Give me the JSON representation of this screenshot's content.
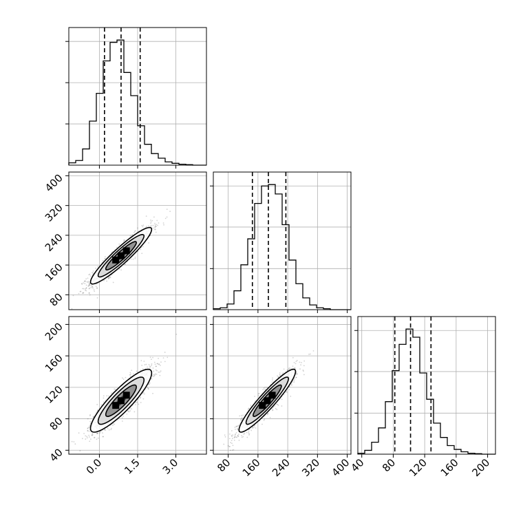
{
  "chart_data": [
    {
      "panel": "hist-p1",
      "type": "histogram",
      "x_ticks": [
        0.0,
        1.5,
        3.0
      ],
      "x_tick_labels": [
        "0.0",
        "1.5",
        "3.0"
      ],
      "xlim": [
        -1.2,
        4.2
      ],
      "bin_start": -1.2,
      "bin_width": 0.27,
      "counts": [
        5,
        10,
        35,
        95,
        155,
        225,
        265,
        270,
        200,
        150,
        85,
        45,
        25,
        15,
        7,
        4,
        2,
        1,
        0,
        0
      ],
      "quantiles": [
        0.2,
        0.85,
        1.6
      ],
      "grid": true
    },
    {
      "panel": "hist-p2",
      "type": "histogram",
      "x_ticks": [
        80,
        160,
        240,
        320,
        400
      ],
      "x_tick_labels": [
        "80",
        "160",
        "240",
        "320",
        "400"
      ],
      "xlim": [
        40,
        410
      ],
      "bin_start": 40,
      "bin_width": 18.5,
      "counts": [
        2,
        4,
        12,
        40,
        95,
        150,
        225,
        262,
        265,
        245,
        180,
        105,
        55,
        25,
        10,
        4,
        2,
        0,
        0,
        0
      ],
      "quantiles": [
        145,
        188,
        235
      ],
      "grid": true
    },
    {
      "panel": "hist-p3",
      "type": "histogram",
      "x_ticks": [
        40,
        80,
        120,
        160,
        200
      ],
      "x_tick_labels": [
        "40",
        "80",
        "120",
        "160",
        "200"
      ],
      "xlim": [
        35,
        210
      ],
      "bin_start": 35,
      "bin_width": 8.75,
      "counts": [
        2,
        8,
        25,
        55,
        110,
        175,
        230,
        262,
        245,
        170,
        115,
        65,
        35,
        18,
        10,
        5,
        2,
        1,
        0,
        0
      ],
      "quantiles": [
        82,
        102,
        128
      ],
      "grid": true
    },
    {
      "panel": "density-p2-vs-p1",
      "type": "scatter-contour",
      "x_ticks": [
        0.0,
        1.5,
        3.0
      ],
      "x_tick_labels": [
        "0.0",
        "1.5",
        "3.0"
      ],
      "y_ticks": [
        80,
        160,
        240,
        320,
        400
      ],
      "y_tick_labels": [
        "80",
        "160",
        "240",
        "320",
        "400"
      ],
      "xlim": [
        -1.2,
        4.2
      ],
      "ylim": [
        40,
        410
      ],
      "mean": [
        0.85,
        185
      ],
      "std": [
        0.6,
        38
      ],
      "correlation": 0.93,
      "contour_levels_sigma": [
        0.5,
        1.0,
        1.5,
        2.0
      ]
    },
    {
      "panel": "density-p3-vs-p1",
      "type": "scatter-contour",
      "x_ticks": [
        0.0,
        1.5,
        3.0
      ],
      "x_tick_labels": [
        "0.0",
        "1.5",
        "3.0"
      ],
      "y_ticks": [
        40,
        80,
        120,
        160,
        200
      ],
      "y_tick_labels": [
        "40",
        "80",
        "120",
        "160",
        "200"
      ],
      "xlim": [
        -1.2,
        4.2
      ],
      "ylim": [
        35,
        210
      ],
      "mean": [
        0.85,
        103
      ],
      "std": [
        0.6,
        20
      ],
      "correlation": 0.88,
      "contour_levels_sigma": [
        0.5,
        1.0,
        1.5,
        2.0
      ]
    },
    {
      "panel": "density-p3-vs-p2",
      "type": "scatter-contour",
      "x_ticks": [
        80,
        160,
        240,
        320,
        400
      ],
      "x_tick_labels": [
        "80",
        "160",
        "240",
        "320",
        "400"
      ],
      "y_ticks": [
        40,
        80,
        120,
        160,
        200
      ],
      "y_tick_labels": [
        "40",
        "80",
        "120",
        "160",
        "200"
      ],
      "xlim": [
        40,
        410
      ],
      "ylim": [
        35,
        210
      ],
      "mean": [
        185,
        103
      ],
      "std": [
        38,
        20
      ],
      "correlation": 0.93,
      "contour_levels_sigma": [
        0.5,
        1.0,
        1.5,
        2.0
      ]
    }
  ],
  "colors": {
    "line": "#000000",
    "grid": "#b0b0b0",
    "points": "#000000",
    "background": "#ffffff"
  }
}
